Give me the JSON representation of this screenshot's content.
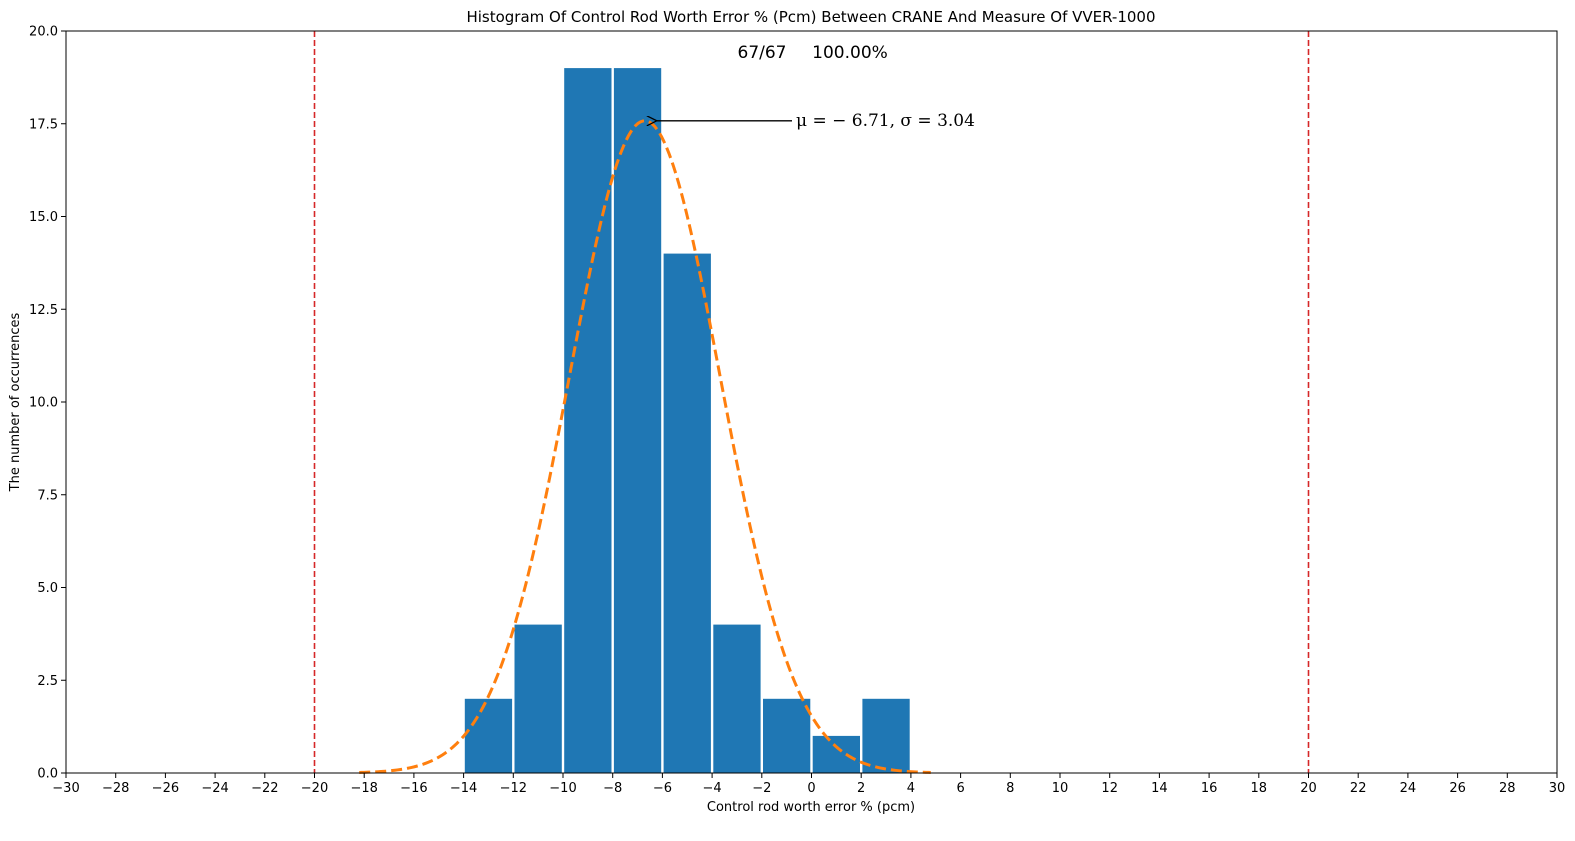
{
  "chart_data": {
    "type": "bar",
    "title": "Histogram Of Control Rod Worth Error % (Pcm) Between CRANE And Measure Of VVER-1000",
    "xlabel": "Control rod worth error % (pcm)",
    "ylabel": "The number of occurrences",
    "xlim": [
      -30,
      30
    ],
    "ylim": [
      0,
      20
    ],
    "grid": false,
    "x_ticks": [
      -30,
      -28,
      -26,
      -24,
      -22,
      -20,
      -18,
      -16,
      -14,
      -12,
      -10,
      -8,
      -6,
      -4,
      -2,
      0,
      2,
      4,
      6,
      8,
      10,
      12,
      14,
      16,
      18,
      20,
      22,
      24,
      26,
      28,
      30
    ],
    "y_ticks": [
      0.0,
      2.5,
      5.0,
      7.5,
      10.0,
      12.5,
      15.0,
      17.5,
      20.0
    ],
    "bins": [
      {
        "start": -14,
        "end": -12,
        "count": 2
      },
      {
        "start": -12,
        "end": -10,
        "count": 4
      },
      {
        "start": -10,
        "end": -8,
        "count": 19
      },
      {
        "start": -8,
        "end": -6,
        "count": 19
      },
      {
        "start": -6,
        "end": -4,
        "count": 14
      },
      {
        "start": -4,
        "end": -2,
        "count": 4
      },
      {
        "start": -2,
        "end": 0,
        "count": 2
      },
      {
        "start": 0,
        "end": 2,
        "count": 1
      },
      {
        "start": 2,
        "end": 4,
        "count": 2
      }
    ],
    "bar_color": "#1f77b4",
    "fit_curve": {
      "type": "normal",
      "mu": -6.71,
      "sigma": 3.04,
      "peak": 17.58,
      "x_range": [
        -18.2,
        4.8
      ],
      "color": "#ff7f0e",
      "style": "dashed"
    },
    "limit_lines": {
      "values": [
        -20,
        20
      ],
      "color": "#d62728",
      "style": "dashed"
    },
    "annotations": {
      "count_label": "67/67",
      "percent_label": "100.00%",
      "stats_label": "μ = − 6.71, σ = 3.04",
      "arrow_target": {
        "x": -6.71,
        "y": 17.58
      }
    }
  }
}
